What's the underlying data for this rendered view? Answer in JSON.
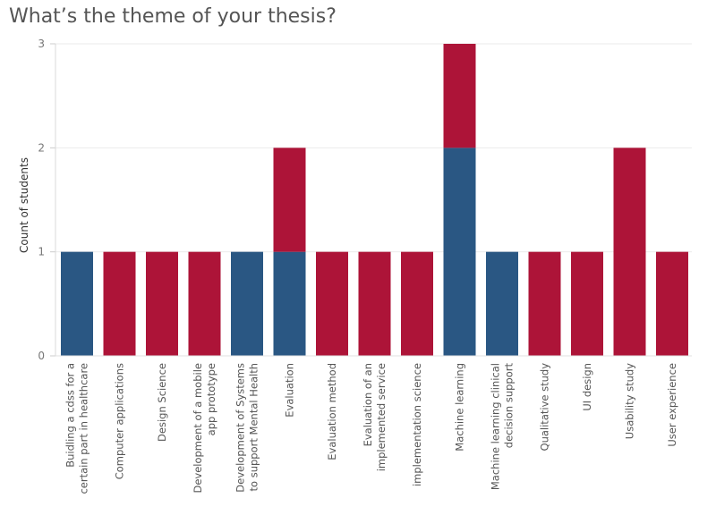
{
  "page": {
    "title": "What’s the theme of your thesis?"
  },
  "chart_data": {
    "type": "bar",
    "stacked": true,
    "title": "What’s the theme of your thesis?",
    "xlabel": "",
    "ylabel": "Count of students",
    "ylim": [
      0,
      3
    ],
    "yticks": [
      0,
      1,
      2,
      3
    ],
    "grid": true,
    "legend": "none",
    "categories": [
      "Buidling a cdss for a certain part in healthcare",
      "Computer applications",
      "Design Science",
      "Development of a mobile app prototype",
      "Development of Systems to support Mental Health",
      "Evaluation",
      "Evaluation method",
      "Evaluation of an implemented service",
      "implementation science",
      "Machine learning",
      "Machine learning clinical decision support",
      "Qualitative study",
      "UI design",
      "Usability study",
      "User experience"
    ],
    "category_label_lines": [
      [
        "Buidling a cdss for a",
        "certain part in healthcare"
      ],
      [
        "Computer applications"
      ],
      [
        "Design Science"
      ],
      [
        "Development of a mobile",
        "app prototype"
      ],
      [
        "Development of Systems",
        "to support Mental Health"
      ],
      [
        "Evaluation"
      ],
      [
        "Evaluation method"
      ],
      [
        "Evaluation of an",
        "implemented service"
      ],
      [
        "implementation science"
      ],
      [
        "Machine learning"
      ],
      [
        "Machine learning clinical",
        "decision support"
      ],
      [
        "Qualitative study"
      ],
      [
        "UI design"
      ],
      [
        "Usability study"
      ],
      [
        "User experience"
      ]
    ],
    "series": [
      {
        "color": "#2a5783",
        "values": [
          1,
          0,
          0,
          0,
          1,
          1,
          0,
          0,
          0,
          2,
          1,
          0,
          0,
          0,
          0
        ]
      },
      {
        "color": "#ad1438",
        "values": [
          0,
          1,
          1,
          1,
          0,
          1,
          1,
          1,
          1,
          1,
          0,
          1,
          1,
          2,
          1
        ]
      }
    ]
  }
}
